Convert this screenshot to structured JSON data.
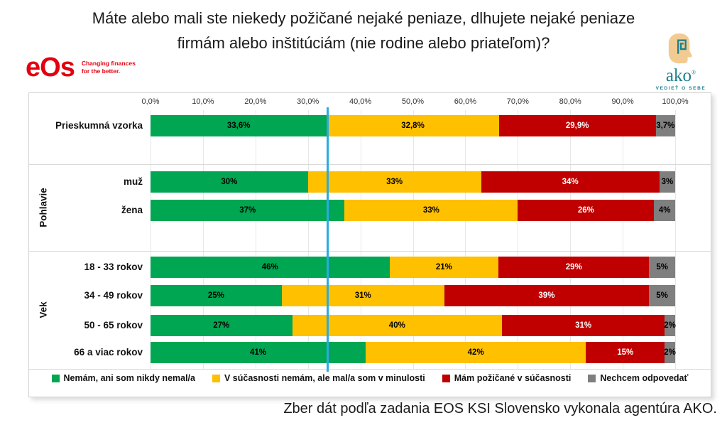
{
  "title": {
    "line1": "Máte alebo mali ste niekedy požičané nejaké peniaze, dlhujete nejaké peniaze",
    "line2": "firmám alebo inštitúciám (nie rodine alebo priateľom)?"
  },
  "logos": {
    "eos": {
      "text": "eOs",
      "tagline_line1": "Changing finances",
      "tagline_line2": "for the better.",
      "color": "#E3000F"
    },
    "ako": {
      "text": "ako",
      "registered": "®",
      "tagline": "VEDIEŤ O SEBE",
      "teal": "#1A7F8E",
      "tan": "#F2CB92"
    }
  },
  "chart_data": {
    "type": "bar",
    "stacked": true,
    "orientation": "horizontal",
    "xlim": [
      0,
      100
    ],
    "grid": true,
    "axis_ticks": [
      "0,0%",
      "10,0%",
      "20,0%",
      "30,0%",
      "40,0%",
      "50,0%",
      "60,0%",
      "70,0%",
      "80,0%",
      "90,0%",
      "100,0%"
    ],
    "reference_line": {
      "value": 33.8,
      "color": "#29ABE2"
    },
    "series_names": [
      "Nemám, ani som nikdy nemal/a",
      "V súčasnosti nemám, ale mal/a som v minulosti",
      "Mám požičané v súčasnosti",
      "Nechcem odpovedať"
    ],
    "colors": [
      "#00A651",
      "#FFC000",
      "#C00000",
      "#7F7F7F"
    ],
    "label_colors": [
      "#000000",
      "#000000",
      "#FFFFFF",
      "#000000"
    ],
    "legend_position": "bottom",
    "groups": [
      {
        "label": "",
        "rows": [
          {
            "category": "Prieskumná vzorka",
            "values": [
              33.6,
              32.8,
              29.9,
              3.7
            ],
            "labels": [
              "33,6%",
              "32,8%",
              "29,9%",
              "3,7%"
            ]
          }
        ]
      },
      {
        "label": "Pohlavie",
        "rows": [
          {
            "category": "muž",
            "values": [
              30,
              33,
              34,
              3
            ],
            "labels": [
              "30%",
              "33%",
              "34%",
              "3%"
            ]
          },
          {
            "category": "žena",
            "values": [
              37,
              33,
              26,
              4
            ],
            "labels": [
              "37%",
              "33%",
              "26%",
              "4%"
            ]
          }
        ]
      },
      {
        "label": "Vek",
        "rows": [
          {
            "category": "18 - 33 rokov",
            "values": [
              46,
              21,
              29,
              5
            ],
            "labels": [
              "46%",
              "21%",
              "29%",
              "5%"
            ]
          },
          {
            "category": "34 - 49 rokov",
            "values": [
              25,
              31,
              39,
              5
            ],
            "labels": [
              "25%",
              "31%",
              "39%",
              "5%"
            ]
          },
          {
            "category": "50 - 65 rokov",
            "values": [
              27,
              40,
              31,
              2
            ],
            "labels": [
              "27%",
              "40%",
              "31%",
              "2%"
            ]
          },
          {
            "category": "66 a viac rokov",
            "values": [
              41,
              42,
              15,
              2
            ],
            "labels": [
              "41%",
              "42%",
              "15%",
              "2%"
            ]
          }
        ]
      }
    ]
  },
  "footer": "Zber dát podľa zadania EOS KSI Slovensko vykonala agentúra AKO."
}
